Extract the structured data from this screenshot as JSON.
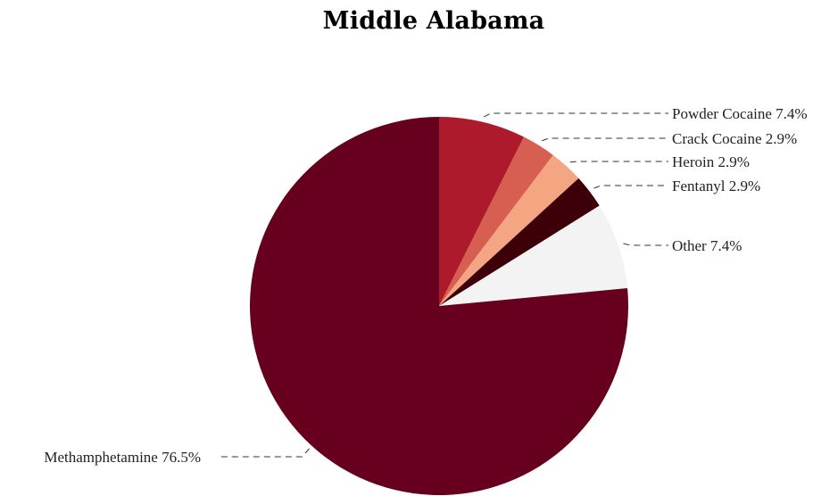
{
  "chart_data": {
    "type": "pie",
    "title": "Middle Alabama",
    "slices": [
      {
        "name": "Powder Cocaine",
        "value": 7.4,
        "label": "Powder Cocaine 7.4%",
        "color": "#ad1a2c",
        "side": "right"
      },
      {
        "name": "Crack Cocaine",
        "value": 2.9,
        "label": "Crack Cocaine 2.9%",
        "color": "#d75f51",
        "side": "right"
      },
      {
        "name": "Heroin",
        "value": 2.9,
        "label": "Heroin 2.9%",
        "color": "#f4a582",
        "side": "right"
      },
      {
        "name": "Fentanyl",
        "value": 2.9,
        "label": "Fentanyl 2.9%",
        "color": "#3e0008",
        "side": "right"
      },
      {
        "name": "Other",
        "value": 7.4,
        "label": "Other 7.4%",
        "color": "#f3f3f3",
        "side": "right"
      },
      {
        "name": "Methamphetamine",
        "value": 76.5,
        "label": "Methamphetamine 76.5%",
        "color": "#67001f",
        "side": "left"
      }
    ],
    "start_angle_deg": 0,
    "direction": "clockwise",
    "legend": "none"
  }
}
